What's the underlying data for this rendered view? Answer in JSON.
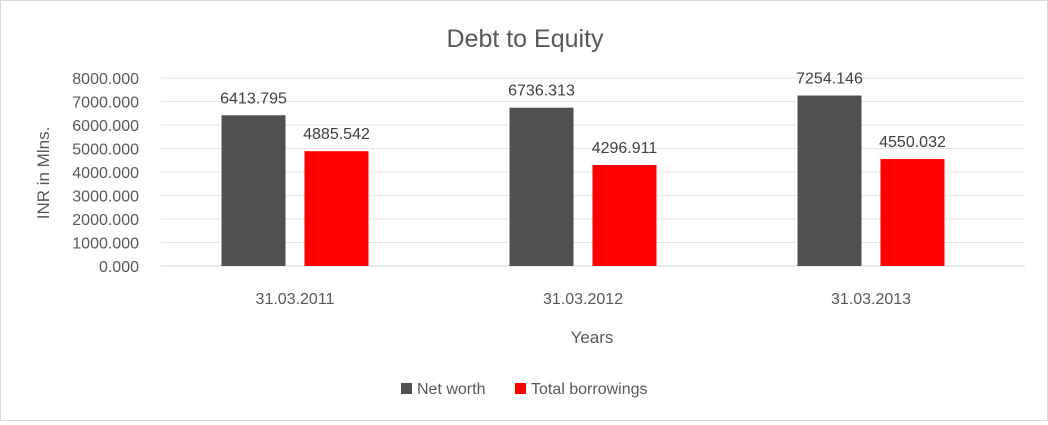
{
  "chart_data": {
    "type": "bar",
    "title": "Debt to Equity",
    "xlabel": "Years",
    "ylabel": "INR in Mlns.",
    "categories": [
      "31.03.2011",
      "31.03.2012",
      "31.03.2013"
    ],
    "series": [
      {
        "name": "Net worth",
        "color": "#505050",
        "values": [
          6413.795,
          6736.313,
          7254.146
        ],
        "labels": [
          "6413.795",
          "6736.313",
          "7254.146"
        ]
      },
      {
        "name": "Total borrowings",
        "color": "#ff0000",
        "values": [
          4885.542,
          4296.911,
          4550.032
        ],
        "labels": [
          "4885.542",
          "4296.911",
          "4550.032"
        ]
      }
    ],
    "ylim": [
      0,
      8000
    ],
    "yticks": [
      0,
      1000,
      2000,
      3000,
      4000,
      5000,
      6000,
      7000,
      8000
    ],
    "ytick_labels": [
      "0.000",
      "1000.000",
      "2000.000",
      "3000.000",
      "4000.000",
      "5000.000",
      "6000.000",
      "7000.000",
      "8000.000"
    ],
    "grid": true,
    "legend_position": "bottom"
  }
}
